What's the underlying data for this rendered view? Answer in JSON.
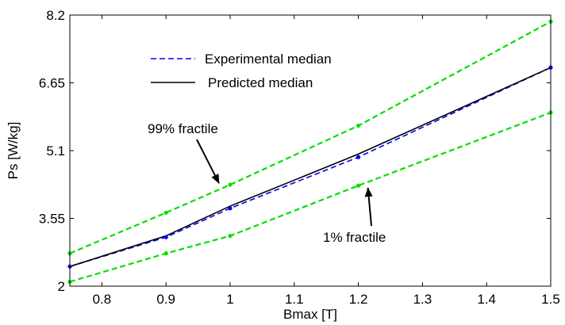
{
  "chart_data": {
    "type": "line",
    "xlabel": "Bmax [T]",
    "ylabel": "Ps [W/kg]",
    "xlim": [
      0.75,
      1.5
    ],
    "ylim": [
      2,
      8.2
    ],
    "xticks": [
      "0.8",
      "0.9",
      "1",
      "1.1",
      "1.2",
      "1.3",
      "1.4",
      "1.5"
    ],
    "yticks": [
      "2",
      "3.55",
      "5.1",
      "6.65",
      "8.2"
    ],
    "grid": false,
    "legend_position": "top-left",
    "series": [
      {
        "name": "Experimental median",
        "style": "dashed",
        "color": "#0000ff",
        "x": [
          0.75,
          0.9,
          1.0,
          1.2,
          1.5
        ],
        "y": [
          2.45,
          3.12,
          3.78,
          4.95,
          7.0
        ]
      },
      {
        "name": "Predicted median",
        "style": "solid",
        "color": "#000000",
        "x": [
          0.75,
          0.9,
          1.0,
          1.2,
          1.5
        ],
        "y": [
          2.45,
          3.15,
          3.83,
          5.02,
          7.0
        ]
      },
      {
        "style": "dashed",
        "color": "#00e000",
        "x": [
          0.75,
          0.9,
          1.0,
          1.2,
          1.5
        ],
        "y": [
          2.75,
          3.68,
          4.32,
          5.67,
          8.05
        ]
      },
      {
        "style": "dashed",
        "color": "#00e000",
        "x": [
          0.75,
          0.9,
          1.0,
          1.2,
          1.5
        ],
        "y": [
          2.1,
          2.75,
          3.15,
          4.3,
          5.97
        ]
      }
    ],
    "annotations": [
      {
        "text": "99% fractile",
        "arrow_to_x": 0.99,
        "arrow_to_y": 4.32
      },
      {
        "text": "1% fractile",
        "arrow_to_x": 1.21,
        "arrow_to_y": 4.3
      }
    ]
  }
}
